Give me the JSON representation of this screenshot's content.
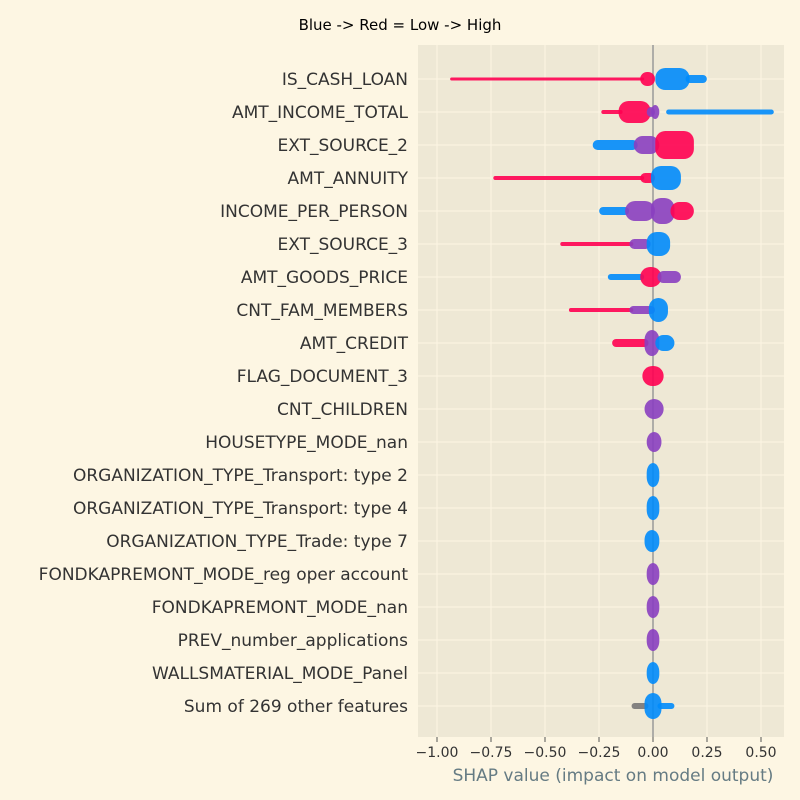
{
  "chart_data": {
    "type": "scatter",
    "title": "Blue -> Red = Low -> High",
    "xlabel": "SHAP value (impact on model output)",
    "ylabel": "",
    "xlim": [
      -1.0,
      0.6
    ],
    "xticks": [
      -1.0,
      -0.75,
      -0.5,
      -0.25,
      0.0,
      0.25,
      0.5
    ],
    "xtick_labels": [
      "−1.00",
      "−0.75",
      "−0.50",
      "−0.25",
      "0.00",
      "0.25",
      "0.50"
    ],
    "grid": true,
    "colors": {
      "low": "#008bfb",
      "high": "#ff0051",
      "mid": "#8a3fc0",
      "nan": "#777777"
    },
    "features": [
      {
        "name": "IS_CASH_LOAN",
        "min": -0.93,
        "max": 0.24,
        "width": 0.12,
        "segments": [
          {
            "from": -0.93,
            "to": -0.05,
            "color": "high",
            "thick": 3
          },
          {
            "from": -0.05,
            "to": 0.0,
            "color": "high",
            "thick": 14
          },
          {
            "from": 0.02,
            "to": 0.16,
            "color": "low",
            "thick": 22
          },
          {
            "from": 0.16,
            "to": 0.24,
            "color": "low",
            "thick": 8
          }
        ]
      },
      {
        "name": "AMT_INCOME_TOTAL",
        "min": -0.23,
        "max": 0.55,
        "width": 0.1,
        "segments": [
          {
            "from": -0.23,
            "to": -0.15,
            "color": "high",
            "thick": 4
          },
          {
            "from": -0.15,
            "to": -0.02,
            "color": "high",
            "thick": 22
          },
          {
            "from": -0.02,
            "to": 0.0,
            "color": "mid",
            "thick": 10
          },
          {
            "from": 0.0,
            "to": 0.02,
            "color": "mid",
            "thick": 14
          },
          {
            "from": 0.07,
            "to": 0.55,
            "color": "low",
            "thick": 5
          }
        ]
      },
      {
        "name": "EXT_SOURCE_2",
        "min": -0.27,
        "max": 0.18,
        "width": 0.12,
        "segments": [
          {
            "from": -0.27,
            "to": -0.08,
            "color": "low",
            "thick": 10
          },
          {
            "from": -0.08,
            "to": 0.02,
            "color": "mid",
            "thick": 18
          },
          {
            "from": 0.02,
            "to": 0.18,
            "color": "high",
            "thick": 28
          }
        ]
      },
      {
        "name": "AMT_ANNUITY",
        "min": -0.73,
        "max": 0.12,
        "width": 0.1,
        "segments": [
          {
            "from": -0.73,
            "to": -0.05,
            "color": "high",
            "thick": 4
          },
          {
            "from": -0.05,
            "to": 0.0,
            "color": "high",
            "thick": 10
          },
          {
            "from": 0.0,
            "to": 0.12,
            "color": "low",
            "thick": 24
          }
        ]
      },
      {
        "name": "INCOME_PER_PERSON",
        "min": -0.24,
        "max": 0.18,
        "width": 0.11,
        "segments": [
          {
            "from": -0.24,
            "to": -0.12,
            "color": "low",
            "thick": 8
          },
          {
            "from": -0.12,
            "to": 0.0,
            "color": "mid",
            "thick": 20
          },
          {
            "from": 0.0,
            "to": 0.09,
            "color": "mid",
            "thick": 26
          },
          {
            "from": 0.09,
            "to": 0.18,
            "color": "high",
            "thick": 18
          }
        ]
      },
      {
        "name": "EXT_SOURCE_3",
        "min": -0.42,
        "max": 0.07,
        "width": 0.1,
        "segments": [
          {
            "from": -0.42,
            "to": -0.1,
            "color": "high",
            "thick": 4
          },
          {
            "from": -0.1,
            "to": -0.02,
            "color": "mid",
            "thick": 10
          },
          {
            "from": -0.02,
            "to": 0.07,
            "color": "low",
            "thick": 24
          }
        ]
      },
      {
        "name": "AMT_GOODS_PRICE",
        "min": -0.2,
        "max": 0.12,
        "width": 0.1,
        "segments": [
          {
            "from": -0.2,
            "to": -0.05,
            "color": "low",
            "thick": 6
          },
          {
            "from": -0.05,
            "to": 0.03,
            "color": "high",
            "thick": 20
          },
          {
            "from": 0.03,
            "to": 0.12,
            "color": "mid",
            "thick": 12
          }
        ]
      },
      {
        "name": "CNT_FAM_MEMBERS",
        "min": -0.38,
        "max": 0.06,
        "width": 0.1,
        "segments": [
          {
            "from": -0.38,
            "to": -0.1,
            "color": "high",
            "thick": 4
          },
          {
            "from": -0.1,
            "to": 0.0,
            "color": "mid",
            "thick": 8
          },
          {
            "from": -0.01,
            "to": 0.06,
            "color": "low",
            "thick": 24
          }
        ]
      },
      {
        "name": "AMT_CREDIT",
        "min": -0.18,
        "max": 0.09,
        "width": 0.1,
        "segments": [
          {
            "from": -0.18,
            "to": -0.03,
            "color": "high",
            "thick": 8
          },
          {
            "from": -0.03,
            "to": 0.02,
            "color": "mid",
            "thick": 26
          },
          {
            "from": 0.02,
            "to": 0.09,
            "color": "low",
            "thick": 16
          }
        ]
      },
      {
        "name": "FLAG_DOCUMENT_3",
        "min": -0.04,
        "max": 0.04,
        "width": 0.1,
        "segments": [
          {
            "from": -0.04,
            "to": 0.04,
            "color": "high",
            "thick": 20
          }
        ]
      },
      {
        "name": "CNT_CHILDREN",
        "min": -0.03,
        "max": 0.04,
        "width": 0.1,
        "segments": [
          {
            "from": -0.03,
            "to": 0.04,
            "color": "mid",
            "thick": 20
          }
        ]
      },
      {
        "name": "HOUSETYPE_MODE_nan",
        "min": -0.02,
        "max": 0.03,
        "width": 0.1,
        "segments": [
          {
            "from": -0.02,
            "to": 0.03,
            "color": "mid",
            "thick": 20
          }
        ]
      },
      {
        "name": "ORGANIZATION_TYPE_Transport: type 2",
        "min": -0.02,
        "max": 0.02,
        "width": 0.1,
        "segments": [
          {
            "from": -0.02,
            "to": 0.02,
            "color": "low",
            "thick": 24
          }
        ]
      },
      {
        "name": "ORGANIZATION_TYPE_Transport: type 4",
        "min": -0.02,
        "max": 0.02,
        "width": 0.1,
        "segments": [
          {
            "from": -0.02,
            "to": 0.02,
            "color": "low",
            "thick": 24
          }
        ]
      },
      {
        "name": "ORGANIZATION_TYPE_Trade: type 7",
        "min": -0.03,
        "max": 0.02,
        "width": 0.1,
        "segments": [
          {
            "from": -0.03,
            "to": 0.02,
            "color": "low",
            "thick": 22
          }
        ]
      },
      {
        "name": "FONDKAPREMONT_MODE_reg oper account",
        "min": -0.02,
        "max": 0.02,
        "width": 0.1,
        "segments": [
          {
            "from": -0.02,
            "to": 0.02,
            "color": "mid",
            "thick": 22
          }
        ]
      },
      {
        "name": "FONDKAPREMONT_MODE_nan",
        "min": -0.02,
        "max": 0.02,
        "width": 0.1,
        "segments": [
          {
            "from": -0.02,
            "to": 0.02,
            "color": "mid",
            "thick": 22
          }
        ]
      },
      {
        "name": "PREV_number_applications",
        "min": -0.02,
        "max": 0.02,
        "width": 0.1,
        "segments": [
          {
            "from": -0.02,
            "to": 0.02,
            "color": "mid",
            "thick": 22
          }
        ]
      },
      {
        "name": "WALLSMATERIAL_MODE_Panel",
        "min": -0.02,
        "max": 0.02,
        "width": 0.1,
        "segments": [
          {
            "from": -0.02,
            "to": 0.02,
            "color": "low",
            "thick": 22
          }
        ]
      },
      {
        "name": "Sum of 269 other features",
        "min": -0.09,
        "max": 0.09,
        "width": 0.1,
        "segments": [
          {
            "from": -0.09,
            "to": -0.03,
            "color": "nan",
            "thick": 6
          },
          {
            "from": -0.03,
            "to": 0.03,
            "color": "low",
            "thick": 26
          },
          {
            "from": 0.03,
            "to": 0.09,
            "color": "low",
            "thick": 6
          }
        ]
      }
    ]
  }
}
